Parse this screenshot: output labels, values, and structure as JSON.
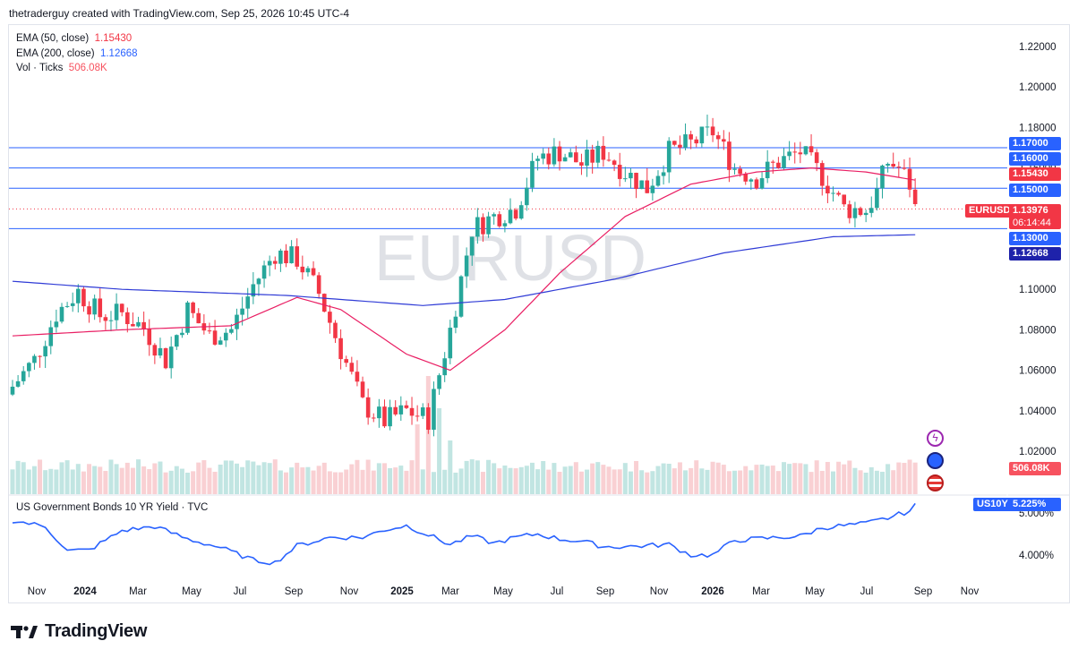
{
  "header": "thetraderguy created with TradingView.com, Sep 25, 2026 10:45 UTC-4",
  "legend": {
    "ema50_label": "EMA (50, close)",
    "ema50_value": "1.15430",
    "ema200_label": "EMA (200, close)",
    "ema200_value": "1.12668",
    "vol_label": "Vol · Ticks",
    "vol_value": "506.08K"
  },
  "watermark": "EURUSD",
  "yield_title": "US Government Bonds 10 YR Yield · TVC",
  "footer_brand": "TradingView",
  "price_tags": {
    "l117": "1.17000",
    "l116": "1.16000",
    "ema50": "1.15430",
    "l115": "1.15000",
    "symbol": "EURUSD",
    "last": "1.13976",
    "countdown": "06:14:44",
    "l113": "1.13000",
    "ema200": "1.12668",
    "vol": "506.08K",
    "yield_symbol": "US10Y",
    "yield_value": "5.225%"
  },
  "colors": {
    "up": "#26a69a",
    "down": "#f23645",
    "ema50": "#e91e63",
    "ema200": "#2f3bd6",
    "hline": "#2962ff",
    "yield": "#2962ff"
  },
  "chart_data": {
    "type": "candlestick",
    "symbol": "EURUSD",
    "timeframe": "weekly",
    "y_ticks": [
      "1.22000",
      "1.20000",
      "1.18000",
      "1.16000",
      "1.10000",
      "1.08000",
      "1.06000",
      "1.04000",
      "1.02000"
    ],
    "ylim": [
      1.0,
      1.225
    ],
    "x_ticks": [
      "Nov",
      "2024",
      "Mar",
      "May",
      "Jul",
      "Sep",
      "Nov",
      "2025",
      "Mar",
      "May",
      "Jul",
      "Sep",
      "Nov",
      "2026",
      "Mar",
      "May",
      "Jul",
      "Sep",
      "Nov"
    ],
    "horizontal_levels": [
      1.17,
      1.16,
      1.15,
      1.13
    ],
    "last_price": 1.13976,
    "anchors": [
      {
        "i": 0,
        "c": 1.052
      },
      {
        "i": 4,
        "c": 1.065
      },
      {
        "i": 8,
        "c": 1.088
      },
      {
        "i": 12,
        "c": 1.099
      },
      {
        "i": 16,
        "c": 1.087
      },
      {
        "i": 20,
        "c": 1.088
      },
      {
        "i": 24,
        "c": 1.081
      },
      {
        "i": 28,
        "c": 1.065
      },
      {
        "i": 32,
        "c": 1.09
      },
      {
        "i": 36,
        "c": 1.077
      },
      {
        "i": 40,
        "c": 1.08
      },
      {
        "i": 44,
        "c": 1.102
      },
      {
        "i": 48,
        "c": 1.118
      },
      {
        "i": 52,
        "c": 1.115
      },
      {
        "i": 56,
        "c": 1.098
      },
      {
        "i": 60,
        "c": 1.07
      },
      {
        "i": 64,
        "c": 1.043
      },
      {
        "i": 68,
        "c": 1.035
      },
      {
        "i": 72,
        "c": 1.04
      },
      {
        "i": 76,
        "c": 1.036
      },
      {
        "i": 80,
        "c": 1.08
      },
      {
        "i": 84,
        "c": 1.13
      },
      {
        "i": 88,
        "c": 1.136
      },
      {
        "i": 92,
        "c": 1.14
      },
      {
        "i": 96,
        "c": 1.165
      },
      {
        "i": 100,
        "c": 1.168
      },
      {
        "i": 104,
        "c": 1.162
      },
      {
        "i": 108,
        "c": 1.168
      },
      {
        "i": 112,
        "c": 1.158
      },
      {
        "i": 116,
        "c": 1.15
      },
      {
        "i": 120,
        "c": 1.168
      },
      {
        "i": 124,
        "c": 1.172
      },
      {
        "i": 128,
        "c": 1.178
      },
      {
        "i": 132,
        "c": 1.16
      },
      {
        "i": 136,
        "c": 1.155
      },
      {
        "i": 140,
        "c": 1.163
      },
      {
        "i": 144,
        "c": 1.168
      },
      {
        "i": 148,
        "c": 1.156
      },
      {
        "i": 152,
        "c": 1.14
      },
      {
        "i": 156,
        "c": 1.139
      },
      {
        "i": 158,
        "c": 1.148
      },
      {
        "i": 160,
        "c": 1.163
      },
      {
        "i": 162,
        "c": 1.16
      },
      {
        "i": 164,
        "c": 1.152
      },
      {
        "i": 165,
        "c": 1.14
      }
    ],
    "ema50": [
      [
        0,
        1.077
      ],
      [
        20,
        1.08
      ],
      [
        40,
        1.082
      ],
      [
        52,
        1.096
      ],
      [
        60,
        1.09
      ],
      [
        72,
        1.068
      ],
      [
        80,
        1.06
      ],
      [
        90,
        1.08
      ],
      [
        100,
        1.108
      ],
      [
        112,
        1.136
      ],
      [
        124,
        1.152
      ],
      [
        136,
        1.158
      ],
      [
        146,
        1.16
      ],
      [
        156,
        1.158
      ],
      [
        165,
        1.154
      ]
    ],
    "ema200": [
      [
        0,
        1.104
      ],
      [
        20,
        1.1
      ],
      [
        50,
        1.097
      ],
      [
        75,
        1.092
      ],
      [
        90,
        1.095
      ],
      [
        110,
        1.105
      ],
      [
        130,
        1.118
      ],
      [
        150,
        1.126
      ],
      [
        165,
        1.127
      ]
    ],
    "volume_base": 0.4,
    "volume_spikes": [
      {
        "i": 74,
        "v": 1.3
      },
      {
        "i": 76,
        "v": 2.2
      },
      {
        "i": 78,
        "v": 1.6
      },
      {
        "i": 80,
        "v": 1.0
      }
    ],
    "yield_series": {
      "name": "US10Y",
      "last": "5.225%",
      "ticks": [
        "5.000%",
        "4.000%"
      ],
      "points": [
        [
          0,
          4.82
        ],
        [
          6,
          4.68
        ],
        [
          10,
          4.1
        ],
        [
          14,
          4.12
        ],
        [
          20,
          4.58
        ],
        [
          26,
          4.68
        ],
        [
          32,
          4.38
        ],
        [
          38,
          4.18
        ],
        [
          44,
          3.88
        ],
        [
          48,
          3.82
        ],
        [
          52,
          4.22
        ],
        [
          58,
          4.42
        ],
        [
          64,
          4.42
        ],
        [
          68,
          4.6
        ],
        [
          72,
          4.7
        ],
        [
          76,
          4.48
        ],
        [
          80,
          4.25
        ],
        [
          84,
          4.45
        ],
        [
          88,
          4.28
        ],
        [
          92,
          4.42
        ],
        [
          96,
          4.5
        ],
        [
          100,
          4.38
        ],
        [
          104,
          4.33
        ],
        [
          108,
          4.2
        ],
        [
          112,
          4.2
        ],
        [
          120,
          4.25
        ],
        [
          124,
          4.0
        ],
        [
          128,
          4.0
        ],
        [
          132,
          4.35
        ],
        [
          138,
          4.4
        ],
        [
          144,
          4.45
        ],
        [
          148,
          4.65
        ],
        [
          152,
          4.7
        ],
        [
          156,
          4.75
        ],
        [
          160,
          4.88
        ],
        [
          164,
          5.05
        ],
        [
          165,
          5.225
        ]
      ]
    }
  }
}
